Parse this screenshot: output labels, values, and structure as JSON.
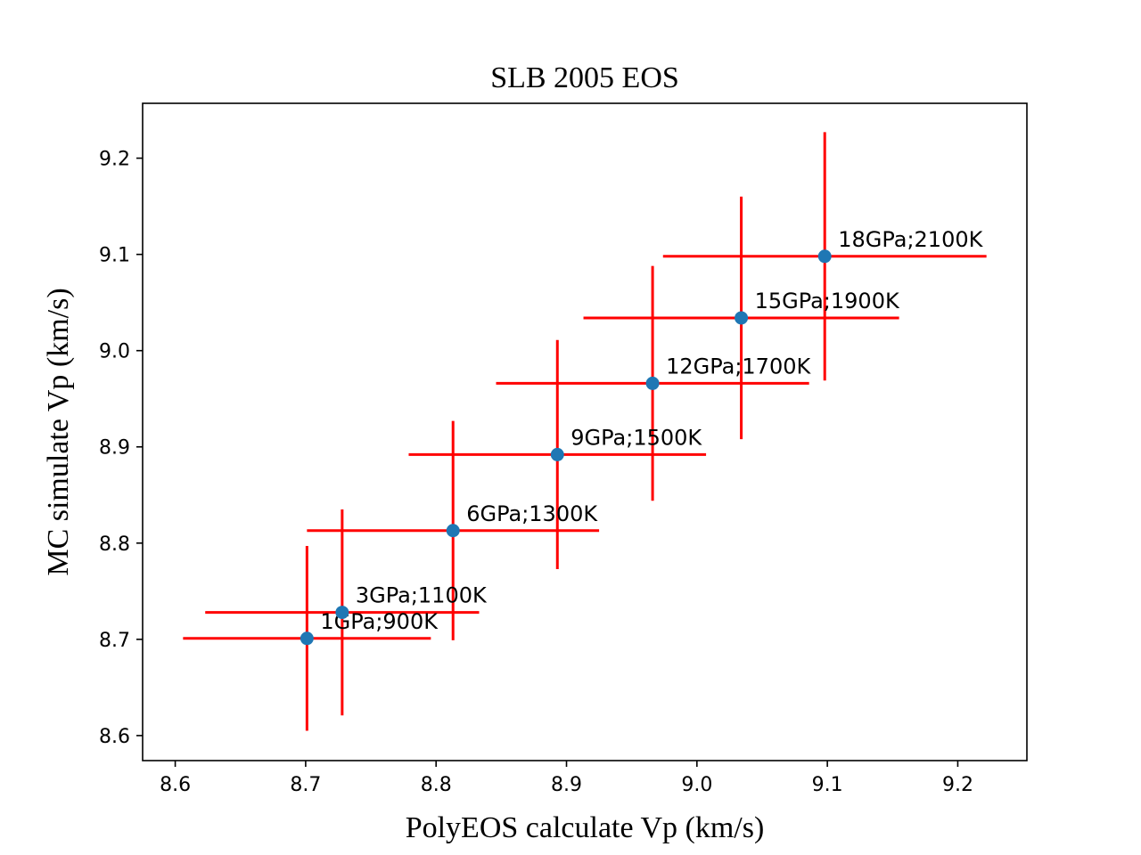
{
  "chart_data": {
    "type": "scatter",
    "title": "SLB 2005 EOS",
    "xlabel": "PolyEOS calculate Vp (km/s)",
    "ylabel": "MC simulate Vp (km/s)",
    "xlim": [
      8.575,
      9.253
    ],
    "ylim": [
      8.574,
      9.257
    ],
    "xticks": [
      "8.6",
      "8.7",
      "8.8",
      "8.9",
      "9.0",
      "9.1",
      "9.2"
    ],
    "yticks": [
      "8.6",
      "8.7",
      "8.8",
      "8.9",
      "9.0",
      "9.1",
      "9.2"
    ],
    "grid": false,
    "legend": "none",
    "colors": {
      "points": "#1f77b4",
      "errorbars": "#ff0000"
    },
    "points": [
      {
        "label": "1GPa;900K",
        "x": 8.701,
        "y": 8.701,
        "xerr": 0.095,
        "yerr": 0.096
      },
      {
        "label": "3GPa;1100K",
        "x": 8.728,
        "y": 8.728,
        "xerr": 0.105,
        "yerr": 0.107
      },
      {
        "label": "6GPa;1300K",
        "x": 8.813,
        "y": 8.813,
        "xerr": 0.112,
        "yerr": 0.114
      },
      {
        "label": "9GPa;1500K",
        "x": 8.893,
        "y": 8.892,
        "xerr": 0.114,
        "yerr": 0.119
      },
      {
        "label": "12GPa;1700K",
        "x": 8.966,
        "y": 8.966,
        "xerr": 0.12,
        "yerr": 0.122
      },
      {
        "label": "15GPa;1900K",
        "x": 9.034,
        "y": 9.034,
        "xerr": 0.121,
        "yerr": 0.126
      },
      {
        "label": "18GPa;2100K",
        "x": 9.098,
        "y": 9.098,
        "xerr": 0.124,
        "yerr": 0.129
      }
    ]
  }
}
